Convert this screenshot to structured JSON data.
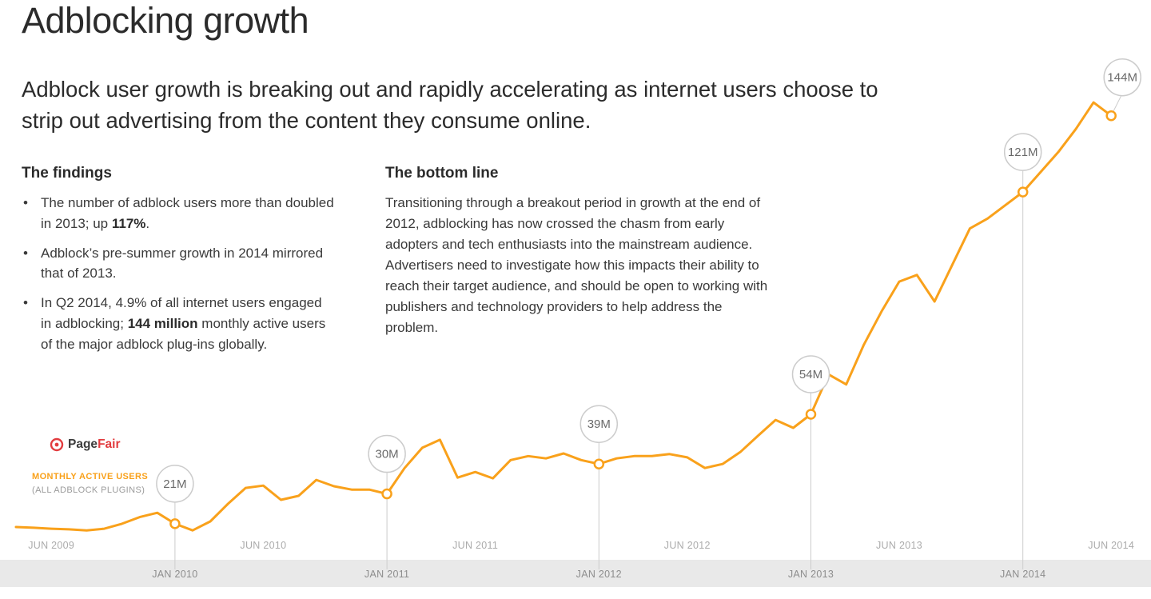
{
  "header": {
    "title": "Adblocking growth",
    "subtitle": "Adblock user growth is breaking out and rapidly accelerating as internet users choose to strip out advertising from the content they consume online."
  },
  "findings": {
    "heading": "The findings",
    "bullets": [
      {
        "pre": "The number of adblock users more than doubled in 2013; up ",
        "bold": "117%",
        "post": "."
      },
      {
        "pre": "Adblock’s pre-summer growth in 2014 mirrored that of 2013.",
        "bold": "",
        "post": ""
      },
      {
        "pre": "In Q2 2014, 4.9% of all internet users engaged in adblocking; ",
        "bold": "144 million",
        "post": " monthly active users of the major adblock plug-ins globally."
      }
    ]
  },
  "bottom_line": {
    "heading": "The bottom line",
    "body": "Transitioning through a breakout period in growth at the end of 2012, adblocking has now crossed the chasm from early adopters and tech enthusiasts into the mainstream audience. Advertisers need to investigate how this impacts their ability to reach their target audience, and should be open to working with publishers and technology providers to help address the problem."
  },
  "brand": {
    "logo_text_dark": "Page",
    "logo_text_red": "Fair",
    "legend_line1": "MONTHLY ACTIVE USERS",
    "legend_line2": "(ALL ADBLOCK PLUGINS)"
  },
  "colors": {
    "line": "#F9A11B",
    "brand_red": "#E23C3F",
    "band": "#E9E9E9",
    "bubble_border": "#CCCCCC",
    "axis_label_top": "#ABABAB",
    "axis_label_band": "#8D8D8D",
    "text": "#3A3A3A"
  },
  "chart_data": {
    "type": "line",
    "series_name": "Monthly active users of major adblock plug-ins (millions)",
    "unit": "millions of users",
    "grid": false,
    "legend_position": "bottom-left",
    "ylim": [
      0,
      160
    ],
    "x_range": [
      "2009-04",
      "2014-06"
    ],
    "months": [
      "2009-04",
      "2009-05",
      "2009-06",
      "2009-07",
      "2009-08",
      "2009-09",
      "2009-10",
      "2009-11",
      "2009-12",
      "2010-01",
      "2010-02",
      "2010-03",
      "2010-04",
      "2010-05",
      "2010-06",
      "2010-07",
      "2010-08",
      "2010-09",
      "2010-10",
      "2010-11",
      "2010-12",
      "2011-01",
      "2011-02",
      "2011-03",
      "2011-04",
      "2011-05",
      "2011-06",
      "2011-07",
      "2011-08",
      "2011-09",
      "2011-10",
      "2011-11",
      "2011-12",
      "2012-01",
      "2012-02",
      "2012-03",
      "2012-04",
      "2012-05",
      "2012-06",
      "2012-07",
      "2012-08",
      "2012-09",
      "2012-10",
      "2012-11",
      "2012-12",
      "2013-01",
      "2013-02",
      "2013-03",
      "2013-04",
      "2013-05",
      "2013-06",
      "2013-07",
      "2013-08",
      "2013-09",
      "2013-10",
      "2013-11",
      "2013-12",
      "2014-01",
      "2014-02",
      "2014-03",
      "2014-04",
      "2014-05",
      "2014-06"
    ],
    "values": [
      20,
      19.8,
      19.5,
      19.3,
      19,
      19.5,
      21,
      23,
      24.3,
      21,
      19,
      21.7,
      27,
      31.8,
      32.5,
      28.2,
      29.4,
      34.2,
      32.3,
      31.3,
      31.3,
      30,
      37.8,
      43.9,
      46.3,
      34.9,
      36.6,
      34.7,
      40.2,
      41.4,
      40.7,
      42.2,
      40.2,
      39,
      40.7,
      41.4,
      41.4,
      42,
      41,
      37.8,
      39,
      42.6,
      47.5,
      52.3,
      49.9,
      54,
      66,
      63,
      75,
      85,
      94,
      96,
      88,
      99,
      110,
      113,
      117,
      121,
      127,
      133,
      140,
      148,
      144
    ],
    "annotations": [
      {
        "month": "2010-01",
        "value": 21,
        "label": "21M"
      },
      {
        "month": "2011-01",
        "value": 30,
        "label": "30M"
      },
      {
        "month": "2012-01",
        "value": 39,
        "label": "39M"
      },
      {
        "month": "2013-01",
        "value": 54,
        "label": "54M"
      },
      {
        "month": "2014-01",
        "value": 121,
        "label": "121M"
      },
      {
        "month": "2014-06",
        "value": 144,
        "label": "144M"
      }
    ],
    "x_axis_top": [
      {
        "label": "JUN 2009",
        "month": "2009-06"
      },
      {
        "label": "JUN 2010",
        "month": "2010-06"
      },
      {
        "label": "JUN 2011",
        "month": "2011-06"
      },
      {
        "label": "JUN 2012",
        "month": "2012-06"
      },
      {
        "label": "JUN 2013",
        "month": "2013-06"
      },
      {
        "label": "JUN 2014",
        "month": "2014-06"
      }
    ],
    "x_axis_band": [
      {
        "label": "JAN 2010",
        "month": "2010-01"
      },
      {
        "label": "JAN 2011",
        "month": "2011-01"
      },
      {
        "label": "JAN 2012",
        "month": "2012-01"
      },
      {
        "label": "JAN 2013",
        "month": "2013-01"
      },
      {
        "label": "JAN 2014",
        "month": "2014-01"
      }
    ]
  }
}
